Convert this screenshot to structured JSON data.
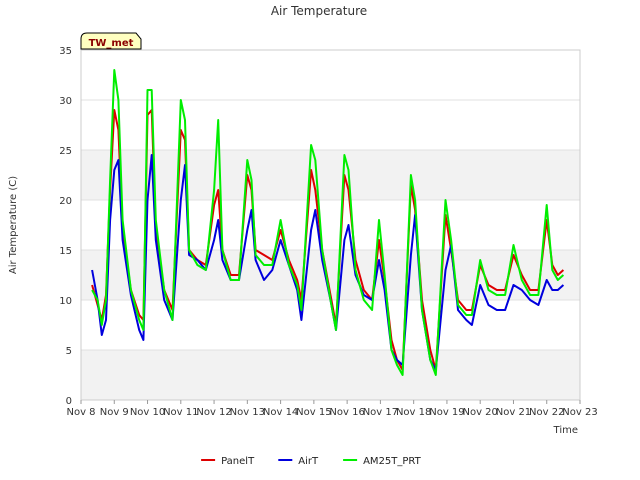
{
  "chart_data": {
    "type": "line",
    "title": "Air Temperature",
    "site_label": "TW_met",
    "xlabel": "Time",
    "ylabel": "Air Temperature (C)",
    "x_ticks": [
      "Nov 8",
      "Nov 9",
      "Nov 10",
      "Nov 11",
      "Nov 12",
      "Nov 13",
      "Nov 14",
      "Nov 15",
      "Nov 16",
      "Nov 17",
      "Nov 18",
      "Nov 19",
      "Nov 20",
      "Nov 21",
      "Nov 22",
      "Nov 23"
    ],
    "xlim": [
      "2023-11-08",
      "2023-11-23"
    ],
    "ylim": [
      0,
      35
    ],
    "y_ticks": [
      0,
      5,
      10,
      15,
      20,
      25,
      30,
      35
    ],
    "grid": "horizontal bands",
    "legend_position": "bottom-center",
    "series": [
      {
        "name": "PanelT",
        "color": "#dd0000",
        "points": [
          [
            "Nov 8 08:00",
            11.5
          ],
          [
            "Nov 8 12:00",
            9.5
          ],
          [
            "Nov 8 15:00",
            8.0
          ],
          [
            "Nov 8 18:00",
            10.5
          ],
          [
            "Nov 8 21:00",
            21.0
          ],
          [
            "Nov 9 00:00",
            29.0
          ],
          [
            "Nov 9 03:00",
            27.0
          ],
          [
            "Nov 9 06:00",
            17.0
          ],
          [
            "Nov 9 12:00",
            11.0
          ],
          [
            "Nov 9 18:00",
            8.5
          ],
          [
            "Nov 9 21:00",
            8.0
          ],
          [
            "Nov 10 00:00",
            28.5
          ],
          [
            "Nov 10 03:00",
            29.0
          ],
          [
            "Nov 10 06:00",
            17.0
          ],
          [
            "Nov 10 12:00",
            11.0
          ],
          [
            "Nov 10 18:00",
            9.0
          ],
          [
            "Nov 11 00:00",
            27.0
          ],
          [
            "Nov 11 03:00",
            26.0
          ],
          [
            "Nov 11 06:00",
            15.0
          ],
          [
            "Nov 11 12:00",
            14.0
          ],
          [
            "Nov 11 18:00",
            13.5
          ],
          [
            "Nov 12 00:00",
            19.5
          ],
          [
            "Nov 12 03:00",
            21.0
          ],
          [
            "Nov 12 06:00",
            15.0
          ],
          [
            "Nov 12 12:00",
            12.5
          ],
          [
            "Nov 12 18:00",
            12.5
          ],
          [
            "Nov 13 00:00",
            22.5
          ],
          [
            "Nov 13 03:00",
            21.0
          ],
          [
            "Nov 13 06:00",
            15.0
          ],
          [
            "Nov 13 12:00",
            14.5
          ],
          [
            "Nov 13 18:00",
            14.0
          ],
          [
            "Nov 14 00:00",
            17.0
          ],
          [
            "Nov 14 06:00",
            14.0
          ],
          [
            "Nov 14 12:00",
            12.0
          ],
          [
            "Nov 14 15:00",
            10.0
          ],
          [
            "Nov 14 22:00",
            23.0
          ],
          [
            "Nov 15 01:00",
            21.0
          ],
          [
            "Nov 15 06:00",
            15.0
          ],
          [
            "Nov 15 12:00",
            10.5
          ],
          [
            "Nov 15 16:00",
            7.5
          ],
          [
            "Nov 15 22:00",
            22.5
          ],
          [
            "Nov 16 01:00",
            21.0
          ],
          [
            "Nov 16 06:00",
            14.0
          ],
          [
            "Nov 16 12:00",
            11.0
          ],
          [
            "Nov 16 18:00",
            10.0
          ],
          [
            "Nov 16 23:00",
            16.0
          ],
          [
            "Nov 17 03:00",
            12.0
          ],
          [
            "Nov 17 08:00",
            6.0
          ],
          [
            "Nov 17 12:00",
            4.0
          ],
          [
            "Nov 17 16:00",
            3.0
          ],
          [
            "Nov 17 22:00",
            21.5
          ],
          [
            "Nov 18 01:00",
            19.0
          ],
          [
            "Nov 18 06:00",
            10.0
          ],
          [
            "Nov 18 12:00",
            5.0
          ],
          [
            "Nov 18 16:00",
            3.0
          ],
          [
            "Nov 18 23:00",
            18.5
          ],
          [
            "Nov 19 03:00",
            15.0
          ],
          [
            "Nov 19 08:00",
            10.0
          ],
          [
            "Nov 19 14:00",
            9.0
          ],
          [
            "Nov 19 18:00",
            9.0
          ],
          [
            "Nov 20 00:00",
            13.5
          ],
          [
            "Nov 20 06:00",
            11.5
          ],
          [
            "Nov 20 12:00",
            11.0
          ],
          [
            "Nov 20 18:00",
            11.0
          ],
          [
            "Nov 21 00:00",
            14.5
          ],
          [
            "Nov 21 06:00",
            12.5
          ],
          [
            "Nov 21 12:00",
            11.0
          ],
          [
            "Nov 21 18:00",
            11.0
          ],
          [
            "Nov 22 00:00",
            18.0
          ],
          [
            "Nov 22 04:00",
            13.5
          ],
          [
            "Nov 22 08:00",
            12.5
          ],
          [
            "Nov 22 12:00",
            13.0
          ]
        ]
      },
      {
        "name": "AirT",
        "color": "#0000dd",
        "points": [
          [
            "Nov 8 08:00",
            13.0
          ],
          [
            "Nov 8 12:00",
            10.0
          ],
          [
            "Nov 8 15:00",
            6.5
          ],
          [
            "Nov 8 18:00",
            8.0
          ],
          [
            "Nov 8 21:00",
            18.0
          ],
          [
            "Nov 9 00:00",
            23.0
          ],
          [
            "Nov 9 03:00",
            24.0
          ],
          [
            "Nov 9 06:00",
            16.0
          ],
          [
            "Nov 9 12:00",
            10.5
          ],
          [
            "Nov 9 18:00",
            7.0
          ],
          [
            "Nov 9 21:00",
            6.0
          ],
          [
            "Nov 10 00:00",
            20.0
          ],
          [
            "Nov 10 03:00",
            24.5
          ],
          [
            "Nov 10 06:00",
            16.0
          ],
          [
            "Nov 10 12:00",
            10.0
          ],
          [
            "Nov 10 18:00",
            8.0
          ],
          [
            "Nov 11 00:00",
            20.0
          ],
          [
            "Nov 11 03:00",
            23.5
          ],
          [
            "Nov 11 06:00",
            14.5
          ],
          [
            "Nov 11 12:00",
            14.0
          ],
          [
            "Nov 11 18:00",
            13.0
          ],
          [
            "Nov 12 00:00",
            16.0
          ],
          [
            "Nov 12 03:00",
            18.0
          ],
          [
            "Nov 12 06:00",
            14.0
          ],
          [
            "Nov 12 12:00",
            12.0
          ],
          [
            "Nov 12 18:00",
            12.0
          ],
          [
            "Nov 13 00:00",
            17.0
          ],
          [
            "Nov 13 03:00",
            19.0
          ],
          [
            "Nov 13 06:00",
            14.0
          ],
          [
            "Nov 13 12:00",
            12.0
          ],
          [
            "Nov 13 18:00",
            13.0
          ],
          [
            "Nov 14 00:00",
            16.0
          ],
          [
            "Nov 14 06:00",
            13.5
          ],
          [
            "Nov 14 12:00",
            11.0
          ],
          [
            "Nov 14 15:00",
            8.0
          ],
          [
            "Nov 14 22:00",
            17.0
          ],
          [
            "Nov 15 01:00",
            19.0
          ],
          [
            "Nov 15 06:00",
            14.0
          ],
          [
            "Nov 15 12:00",
            10.0
          ],
          [
            "Nov 15 16:00",
            7.0
          ],
          [
            "Nov 15 22:00",
            16.0
          ],
          [
            "Nov 16 01:00",
            17.5
          ],
          [
            "Nov 16 06:00",
            12.5
          ],
          [
            "Nov 16 12:00",
            10.5
          ],
          [
            "Nov 16 18:00",
            10.0
          ],
          [
            "Nov 16 23:00",
            14.0
          ],
          [
            "Nov 17 03:00",
            11.0
          ],
          [
            "Nov 17 08:00",
            5.0
          ],
          [
            "Nov 17 12:00",
            4.0
          ],
          [
            "Nov 17 16:00",
            3.5
          ],
          [
            "Nov 17 22:00",
            14.5
          ],
          [
            "Nov 18 01:00",
            18.5
          ],
          [
            "Nov 18 06:00",
            9.0
          ],
          [
            "Nov 18 12:00",
            4.0
          ],
          [
            "Nov 18 16:00",
            3.0
          ],
          [
            "Nov 18 23:00",
            13.0
          ],
          [
            "Nov 19 03:00",
            15.5
          ],
          [
            "Nov 19 08:00",
            9.0
          ],
          [
            "Nov 19 14:00",
            8.0
          ],
          [
            "Nov 19 18:00",
            7.5
          ],
          [
            "Nov 20 00:00",
            11.5
          ],
          [
            "Nov 20 06:00",
            9.5
          ],
          [
            "Nov 20 12:00",
            9.0
          ],
          [
            "Nov 20 18:00",
            9.0
          ],
          [
            "Nov 21 00:00",
            11.5
          ],
          [
            "Nov 21 06:00",
            11.0
          ],
          [
            "Nov 21 12:00",
            10.0
          ],
          [
            "Nov 21 18:00",
            9.5
          ],
          [
            "Nov 22 00:00",
            12.0
          ],
          [
            "Nov 22 04:00",
            11.0
          ],
          [
            "Nov 22 08:00",
            11.0
          ],
          [
            "Nov 22 12:00",
            11.5
          ]
        ]
      },
      {
        "name": "AM25T_PRT",
        "color": "#00ee00",
        "points": [
          [
            "Nov 8 08:00",
            11.0
          ],
          [
            "Nov 8 12:00",
            10.0
          ],
          [
            "Nov 8 15:00",
            7.5
          ],
          [
            "Nov 8 18:00",
            10.0
          ],
          [
            "Nov 8 21:00",
            22.0
          ],
          [
            "Nov 9 00:00",
            33.0
          ],
          [
            "Nov 9 03:00",
            30.0
          ],
          [
            "Nov 9 06:00",
            18.0
          ],
          [
            "Nov 9 12:00",
            11.0
          ],
          [
            "Nov 9 18:00",
            8.0
          ],
          [
            "Nov 9 21:00",
            7.0
          ],
          [
            "Nov 10 00:00",
            31.0
          ],
          [
            "Nov 10 03:00",
            31.0
          ],
          [
            "Nov 10 06:00",
            18.0
          ],
          [
            "Nov 10 12:00",
            11.0
          ],
          [
            "Nov 10 18:00",
            8.0
          ],
          [
            "Nov 11 00:00",
            30.0
          ],
          [
            "Nov 11 03:00",
            28.0
          ],
          [
            "Nov 11 06:00",
            15.0
          ],
          [
            "Nov 11 12:00",
            13.5
          ],
          [
            "Nov 11 18:00",
            13.0
          ],
          [
            "Nov 12 00:00",
            21.0
          ],
          [
            "Nov 12 03:00",
            28.0
          ],
          [
            "Nov 12 06:00",
            15.0
          ],
          [
            "Nov 12 12:00",
            12.0
          ],
          [
            "Nov 12 18:00",
            12.0
          ],
          [
            "Nov 13 00:00",
            24.0
          ],
          [
            "Nov 13 03:00",
            22.0
          ],
          [
            "Nov 13 06:00",
            14.5
          ],
          [
            "Nov 13 12:00",
            13.5
          ],
          [
            "Nov 13 18:00",
            13.5
          ],
          [
            "Nov 14 00:00",
            18.0
          ],
          [
            "Nov 14 06:00",
            13.5
          ],
          [
            "Nov 14 12:00",
            11.5
          ],
          [
            "Nov 14 15:00",
            9.0
          ],
          [
            "Nov 14 22:00",
            25.5
          ],
          [
            "Nov 15 01:00",
            24.0
          ],
          [
            "Nov 15 06:00",
            15.0
          ],
          [
            "Nov 15 12:00",
            10.0
          ],
          [
            "Nov 15 16:00",
            7.0
          ],
          [
            "Nov 15 22:00",
            24.5
          ],
          [
            "Nov 16 01:00",
            23.0
          ],
          [
            "Nov 16 06:00",
            13.0
          ],
          [
            "Nov 16 12:00",
            10.0
          ],
          [
            "Nov 16 18:00",
            9.0
          ],
          [
            "Nov 16 23:00",
            18.0
          ],
          [
            "Nov 17 03:00",
            12.5
          ],
          [
            "Nov 17 08:00",
            5.0
          ],
          [
            "Nov 17 12:00",
            3.5
          ],
          [
            "Nov 17 16:00",
            2.5
          ],
          [
            "Nov 17 22:00",
            22.5
          ],
          [
            "Nov 18 01:00",
            20.0
          ],
          [
            "Nov 18 06:00",
            9.0
          ],
          [
            "Nov 18 12:00",
            4.0
          ],
          [
            "Nov 18 16:00",
            2.5
          ],
          [
            "Nov 18 23:00",
            20.0
          ],
          [
            "Nov 19 03:00",
            16.0
          ],
          [
            "Nov 19 08:00",
            9.5
          ],
          [
            "Nov 19 14:00",
            8.5
          ],
          [
            "Nov 19 18:00",
            8.5
          ],
          [
            "Nov 20 00:00",
            14.0
          ],
          [
            "Nov 20 06:00",
            11.0
          ],
          [
            "Nov 20 12:00",
            10.5
          ],
          [
            "Nov 20 18:00",
            10.5
          ],
          [
            "Nov 21 00:00",
            15.5
          ],
          [
            "Nov 21 06:00",
            12.0
          ],
          [
            "Nov 21 12:00",
            10.5
          ],
          [
            "Nov 21 18:00",
            10.5
          ],
          [
            "Nov 22 00:00",
            19.5
          ],
          [
            "Nov 22 04:00",
            13.0
          ],
          [
            "Nov 22 08:00",
            12.0
          ],
          [
            "Nov 22 12:00",
            12.5
          ]
        ]
      }
    ]
  }
}
